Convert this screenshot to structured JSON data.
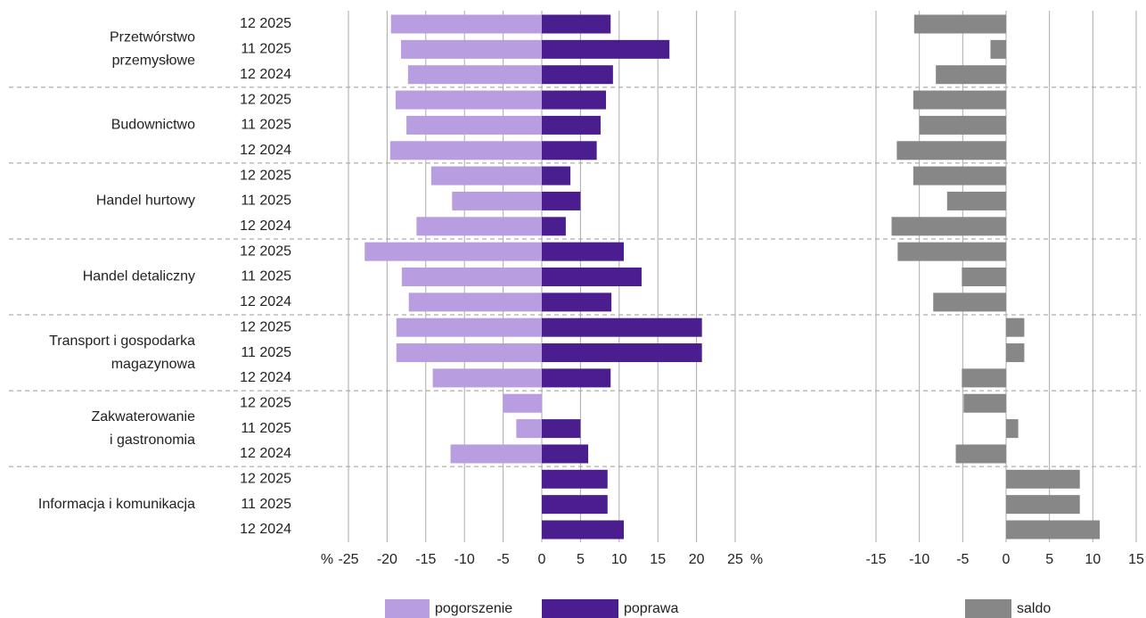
{
  "chart_data": [
    {
      "type": "bar",
      "orientation": "horizontal",
      "categories": [
        "12 2025",
        "11 2025",
        "12 2024",
        "12 2025",
        "11 2025",
        "12 2024",
        "12 2025",
        "11 2025",
        "12 2024",
        "12 2025",
        "11 2025",
        "12 2024",
        "12 2025",
        "11 2025",
        "12 2024",
        "12 2025",
        "11 2025",
        "12 2024",
        "12 2025",
        "11 2025",
        "12 2024"
      ],
      "groups": [
        [
          "Przetwórstwo",
          "przemysłowe"
        ],
        [
          "Budownictwo"
        ],
        [
          "Handel hurtowy"
        ],
        [
          "Handel detaliczny"
        ],
        [
          "Transport i gospodarka",
          "magazynowa"
        ],
        [
          "Zakwaterowanie",
          "i gastronomia"
        ],
        [
          "Informacja i komunikacja"
        ]
      ],
      "series": [
        {
          "name": "pogorszenie",
          "color": "#b89de0",
          "values": [
            -19.5,
            -18.2,
            -17.3,
            -18.9,
            -17.5,
            -19.6,
            -14.3,
            -11.6,
            -16.2,
            -22.9,
            -18.1,
            -17.2,
            -18.8,
            -18.8,
            -14.1,
            -5.0,
            -3.3,
            -11.8,
            0,
            0,
            0
          ]
        },
        {
          "name": "poprawa",
          "color": "#4b1e8f",
          "values": [
            8.9,
            16.5,
            9.2,
            8.3,
            7.6,
            7.1,
            3.7,
            5.0,
            3.1,
            10.6,
            12.9,
            9.0,
            20.7,
            20.7,
            8.9,
            0,
            5.0,
            6.0,
            8.5,
            8.5,
            10.6
          ]
        }
      ],
      "x_unit": "%",
      "xlim": [
        -25,
        25
      ],
      "xticks": [
        -25,
        -20,
        -15,
        -10,
        -5,
        0,
        5,
        10,
        15,
        20,
        25
      ],
      "grid": true,
      "legend": "bottom"
    },
    {
      "type": "bar",
      "orientation": "horizontal",
      "series": [
        {
          "name": "saldo",
          "color": "#878787",
          "values": [
            -10.6,
            -1.8,
            -8.1,
            -10.7,
            -10.0,
            -12.6,
            -10.7,
            -6.8,
            -13.2,
            -12.5,
            -5.1,
            -8.4,
            2.1,
            2.1,
            -5.1,
            -4.9,
            1.4,
            -5.8,
            8.5,
            8.5,
            10.8
          ]
        }
      ],
      "xlim": [
        -15,
        15
      ],
      "xticks": [
        -15,
        -10,
        -5,
        0,
        5,
        10,
        15
      ],
      "grid": true,
      "legend": "bottom"
    }
  ]
}
